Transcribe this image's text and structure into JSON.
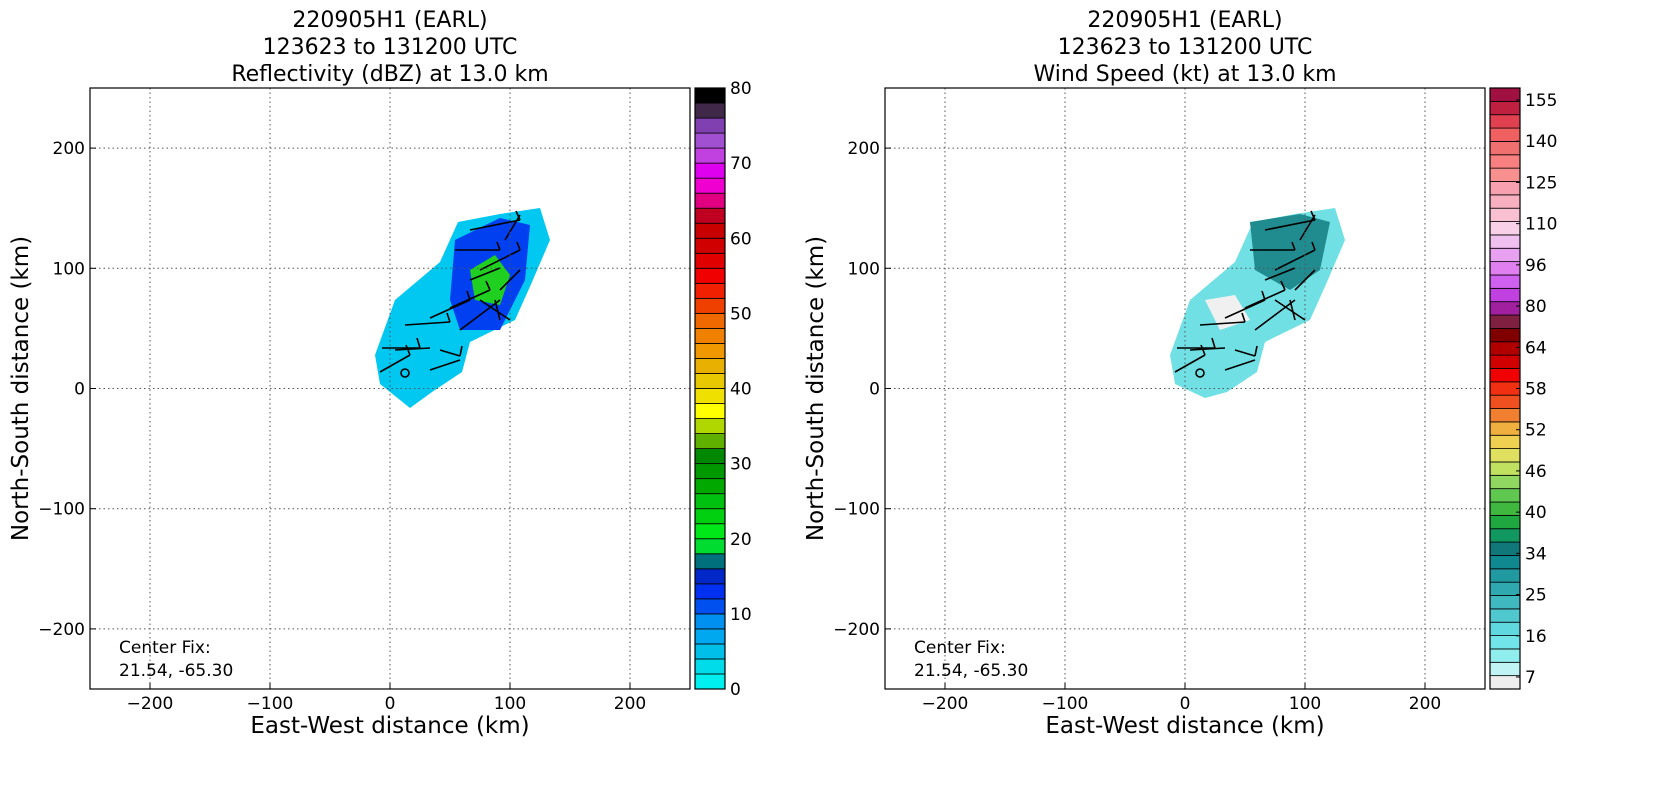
{
  "chart_data": [
    {
      "type": "heatmap",
      "title": [
        "220905H1 (EARL)",
        "123623 to 131200 UTC",
        "Reflectivity (dBZ) at 13.0 km"
      ],
      "xlabel": "East-West distance (km)",
      "ylabel": "North-South distance (km)",
      "xlim": [
        -250,
        250
      ],
      "ylim": [
        -250,
        250
      ],
      "xticks": [
        {
          "value": -200,
          "label": "−200"
        },
        {
          "value": -100,
          "label": "−100"
        },
        0,
        100,
        200
      ],
      "yticks": [
        {
          "value": -200,
          "label": "−200"
        },
        {
          "value": -100,
          "label": "−100"
        },
        0,
        100,
        200
      ],
      "grid": true,
      "annotation": [
        "Center Fix:",
        "21.54, -65.30"
      ],
      "colorbar": {
        "lim": [
          0,
          80
        ],
        "ticks": [
          0,
          10,
          20,
          30,
          40,
          50,
          60,
          70,
          80
        ],
        "colors": [
          "#00f0f0",
          "#00dcea",
          "#00c0ea",
          "#00a8f0",
          "#0090f0",
          "#0050f0",
          "#0030f0",
          "#0028c8",
          "#00707c",
          "#00dd30",
          "#00e818",
          "#00d010",
          "#00c010",
          "#00a800",
          "#009800",
          "#008800",
          "#60b000",
          "#b0d800",
          "#ffff00",
          "#f0e000",
          "#e8c800",
          "#e8b000",
          "#f09800",
          "#f08000",
          "#f06800",
          "#f04000",
          "#f02000",
          "#f00000",
          "#e00000",
          "#d00000",
          "#c80000",
          "#c00020",
          "#e00080",
          "#f000d0",
          "#e000f0",
          "#c040e0",
          "#a050d0",
          "#8040b0",
          "#402848",
          "#000000"
        ]
      }
    },
    {
      "type": "heatmap",
      "title": [
        "220905H1 (EARL)",
        "123623 to 131200 UTC",
        "Wind Speed (kt) at 13.0 km"
      ],
      "xlabel": "East-West distance (km)",
      "ylabel": "North-South distance (km)",
      "xlim": [
        -250,
        250
      ],
      "ylim": [
        -250,
        250
      ],
      "xticks": [
        {
          "value": -200,
          "label": "−200"
        },
        {
          "value": -100,
          "label": "−100"
        },
        0,
        100,
        200
      ],
      "yticks": [
        {
          "value": -200,
          "label": "−200"
        },
        {
          "value": -100,
          "label": "−100"
        },
        0,
        100,
        200
      ],
      "grid": true,
      "annotation": [
        "Center Fix:",
        "21.54, -65.30"
      ],
      "colorbar": {
        "ticks": [
          7,
          16,
          25,
          34,
          40,
          46,
          52,
          58,
          64,
          80,
          96,
          110,
          125,
          140,
          155
        ],
        "colors": [
          "#eeeeee",
          "#c0f4f4",
          "#90eeee",
          "#70e4e8",
          "#60d8e0",
          "#50c8d0",
          "#40b8c0",
          "#30a8b0",
          "#209aa0",
          "#108890",
          "#107878",
          "#109860",
          "#20a840",
          "#40b840",
          "#60c850",
          "#90d860",
          "#c0e060",
          "#e0e060",
          "#f0d050",
          "#f0b040",
          "#f08030",
          "#f05020",
          "#f03010",
          "#f00000",
          "#d00000",
          "#b00000",
          "#800000",
          "#802040",
          "#a020a0",
          "#c040e0",
          "#d060f0",
          "#e080f0",
          "#e8a0f0",
          "#f0c0f0",
          "#f8d0e8",
          "#f8c0d0",
          "#f8b0c0",
          "#f8a0b0",
          "#f89090",
          "#f88080",
          "#f07070",
          "#f06060",
          "#e04050",
          "#c02040",
          "#a01040"
        ]
      }
    }
  ]
}
